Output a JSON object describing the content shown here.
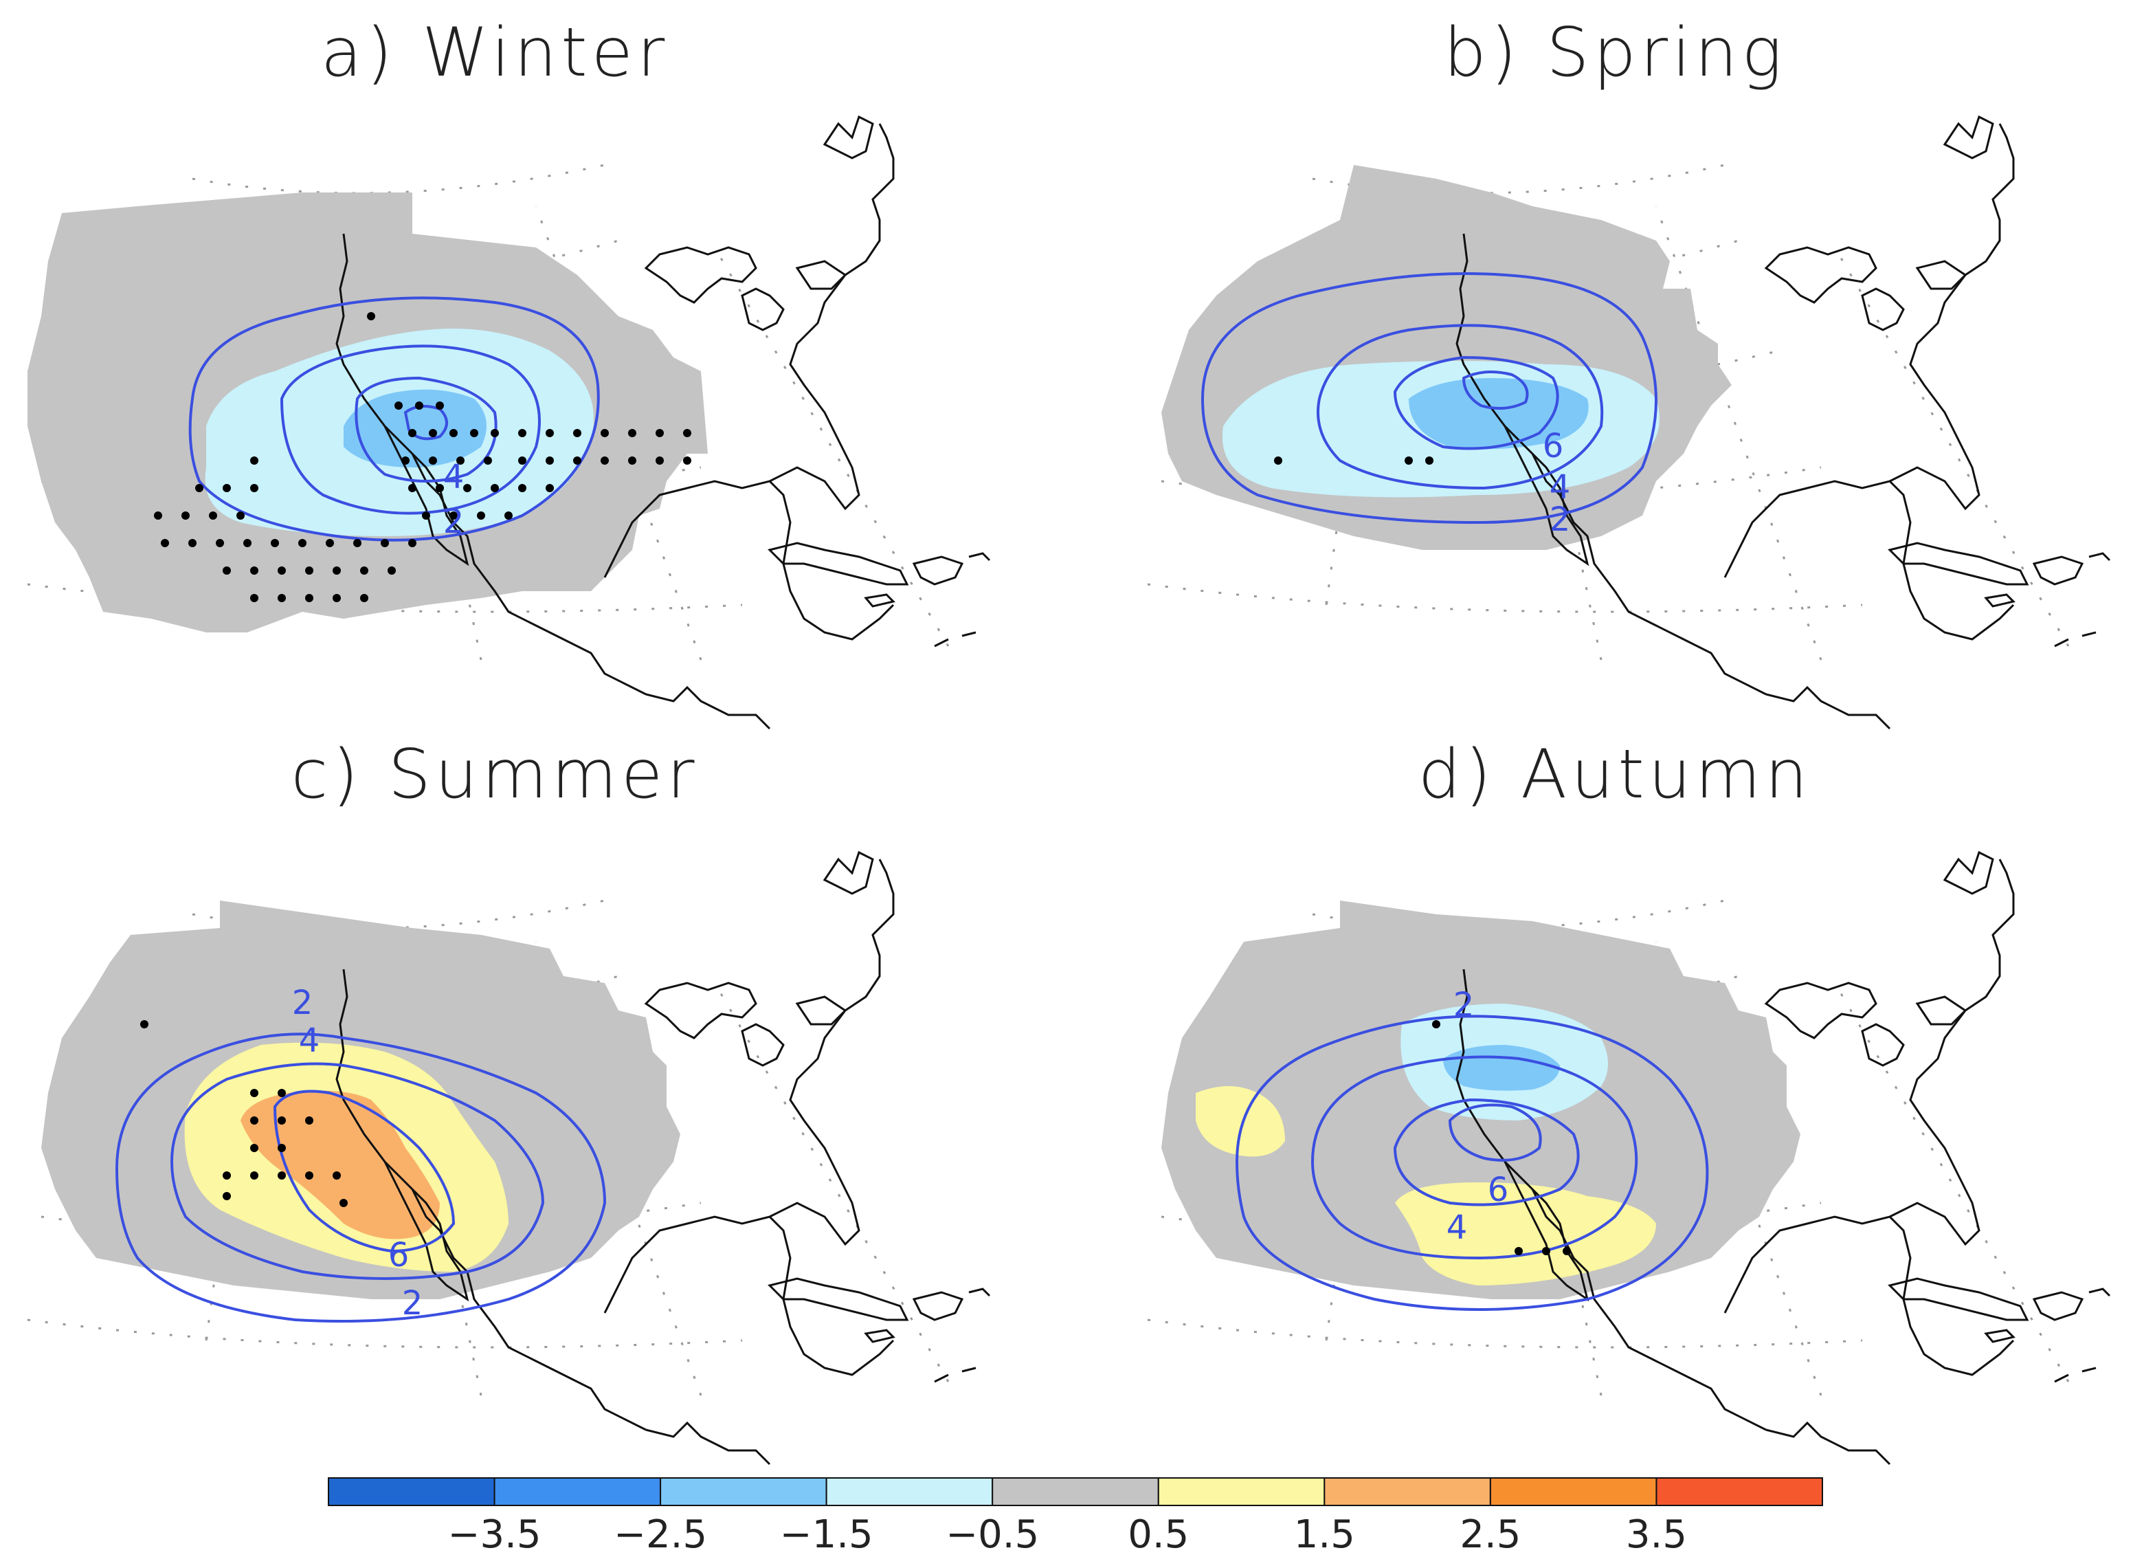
{
  "panels": [
    {
      "title": "a)  Winter",
      "contour_labels": [
        "4",
        "2"
      ]
    },
    {
      "title": "b)  Spring",
      "contour_labels": [
        "6",
        "4",
        "2"
      ]
    },
    {
      "title": "c)  Summer",
      "contour_labels": [
        "2",
        "4",
        "6",
        "2"
      ]
    },
    {
      "title": "d)  Autumn",
      "contour_labels": [
        "2",
        "6",
        "4"
      ]
    }
  ],
  "colorbar": {
    "colors": [
      "#1f68d1",
      "#3d8ff0",
      "#7ec8f8",
      "#c9f2fb",
      "#c4c4c4",
      "#fbf7a2",
      "#f9b16a",
      "#f78f2f",
      "#f5582d"
    ],
    "labels": [
      "−3.5",
      "−2.5",
      "−1.5",
      "−0.5",
      "0.5",
      "1.5",
      "2.5",
      "3.5"
    ]
  },
  "colors": {
    "contour": "#3a4fe0",
    "land_outline": "#111111",
    "domain": "#c4c4c4",
    "grid": "#999999"
  }
}
